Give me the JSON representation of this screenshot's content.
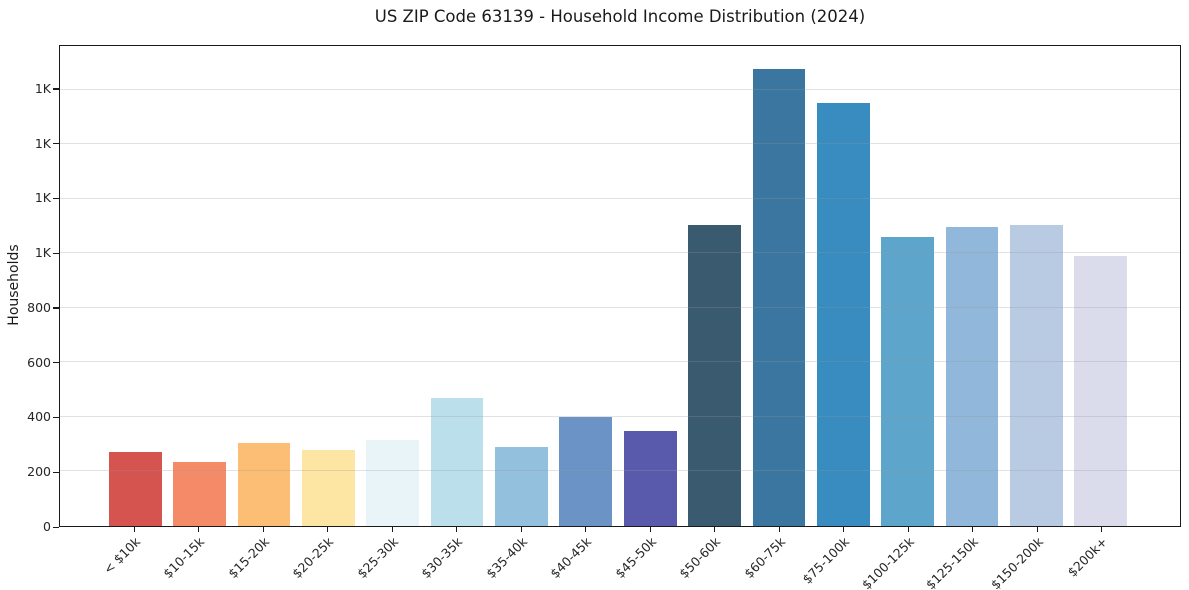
{
  "chart_data": {
    "type": "bar",
    "title": "US ZIP Code 63139 - Household Income Distribution (2024)",
    "xlabel": "",
    "ylabel": "Households",
    "categories": [
      "< $10k",
      "$10-15k",
      "$15-20k",
      "$20-25k",
      "$25-30k",
      "$30-35k",
      "$35-40k",
      "$40-45k",
      "$45-50k",
      "$50-60k",
      "$60-75k",
      "$75-100k",
      "$100-125k",
      "$125-150k",
      "$150-200k",
      "$200k+"
    ],
    "values": [
      270,
      235,
      305,
      280,
      315,
      470,
      290,
      400,
      350,
      1105,
      1675,
      1550,
      1060,
      1095,
      1105,
      990
    ],
    "bar_colors": [
      "#d6544f",
      "#f58a68",
      "#fcbe75",
      "#fde5a3",
      "#e8f4f7",
      "#bcdfec",
      "#92c0dd",
      "#6b93c6",
      "#5a5aad",
      "#3a5a70",
      "#3a76a0",
      "#398cc0",
      "#5da5cb",
      "#91b8da",
      "#b9cae3",
      "#dadcec"
    ],
    "y_ticks": [
      {
        "value": 0,
        "label": "0"
      },
      {
        "value": 200,
        "label": "200"
      },
      {
        "value": 400,
        "label": "400"
      },
      {
        "value": 600,
        "label": "600"
      },
      {
        "value": 800,
        "label": "800"
      },
      {
        "value": 1000,
        "label": "1K"
      },
      {
        "value": 1200,
        "label": "1K"
      },
      {
        "value": 1400,
        "label": "1K"
      },
      {
        "value": 1600,
        "label": "1K"
      }
    ],
    "ylim": [
      0,
      1760
    ],
    "grid": "horizontal",
    "legend": "none",
    "background_color": "#ffffff",
    "spine_color": "#1a1a1a",
    "gridline_color": "#e6e6e6"
  }
}
